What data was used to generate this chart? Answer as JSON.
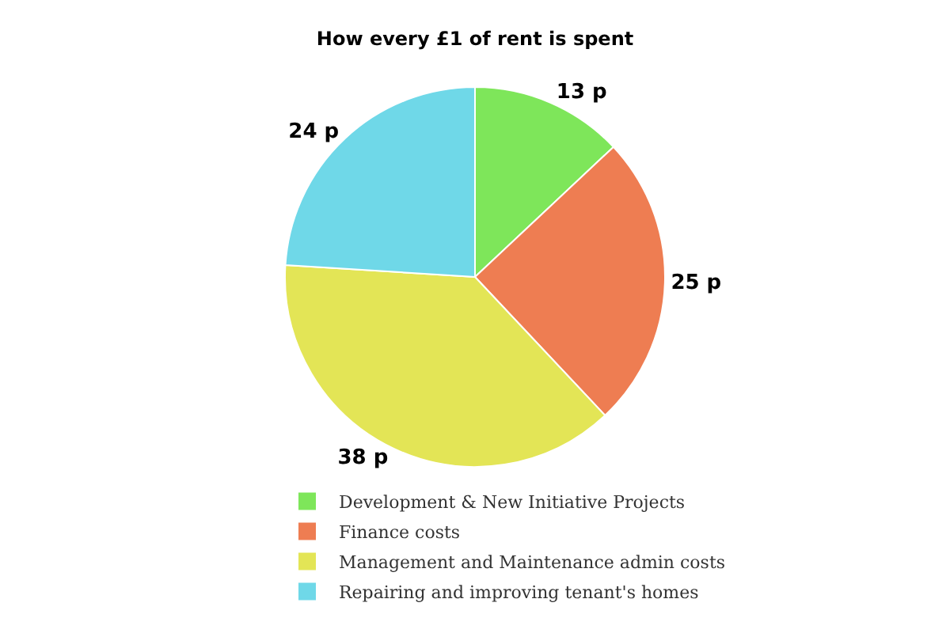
{
  "chart_data": {
    "type": "pie",
    "title": "How every £1 of rent is spent",
    "categories": [
      "Development & New Initiative Projects",
      "Finance costs",
      "Management and Maintenance admin costs",
      "Repairing and improving tenant's homes"
    ],
    "values": [
      13,
      25,
      38,
      24
    ],
    "value_labels": [
      "13 p",
      "25 p",
      "38 p",
      "24 p"
    ],
    "colors": [
      "#7ee65a",
      "#ee7d52",
      "#e3e556",
      "#6fd8e8"
    ],
    "legend": "bottom"
  }
}
